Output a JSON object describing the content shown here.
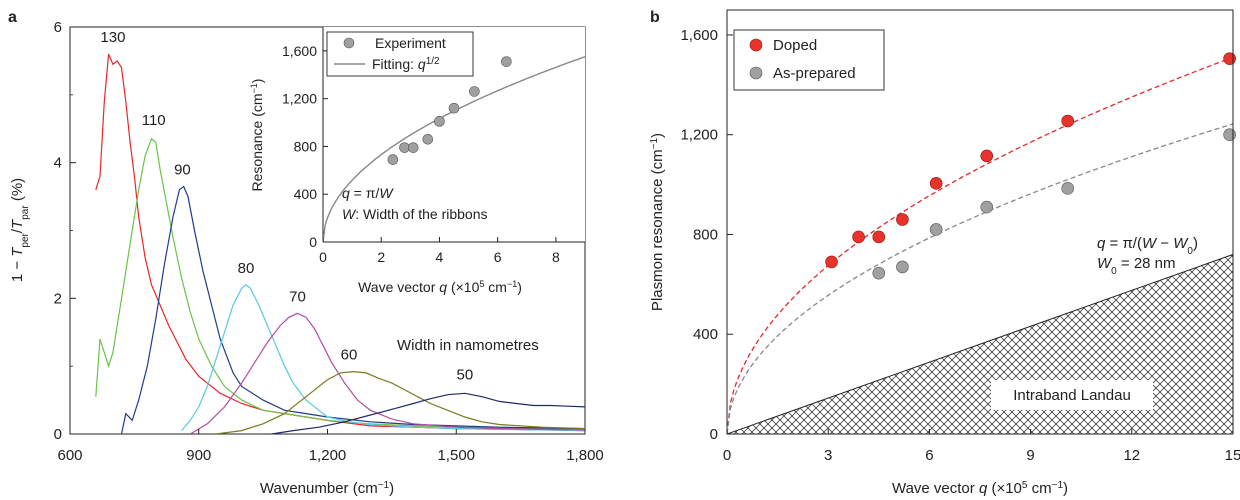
{
  "panel_a": {
    "letter": "a",
    "ylabel": "1 − T_per/T_par (%)",
    "xlabel": "Wavenumber (cm−1)",
    "width_note": "Width in namometres",
    "inset": {
      "legend_experiment": "Experiment",
      "legend_fit": "Fitting: q^1/2",
      "xlabel": "Wave vector q (×10⁵ cm⁻¹)",
      "ylabel": "Resonance (cm⁻¹)",
      "formula": "q = π/W",
      "width_def": "W: Width of the ribbons"
    }
  },
  "panel_b": {
    "letter": "b",
    "ylabel": "Plasmon resonance (cm⁻¹)",
    "xlabel": "Wave vector q (×10⁵ cm⁻¹)",
    "formula": "q = π/(W − W₀)",
    "w0": "W₀ = 28 nm",
    "region_label": "Intraband Landau",
    "legend_doped": "Doped",
    "legend_prepared": "As-prepared"
  },
  "colors": {
    "w130": "#e8262a",
    "w110": "#6cc24a",
    "w90": "#1f3b8f",
    "w80": "#59c8e0",
    "w70": "#b24aa6",
    "w60": "#7b7a1e",
    "w50": "#1a2a6c",
    "doped": "#e8332a",
    "prepared": "#9a9a9a",
    "fit_doped": "#e8262a",
    "fit_prepared": "#888888",
    "region_text": "#e8262a"
  },
  "chart_data": [
    {
      "type": "line",
      "panel": "a",
      "xlim": [
        600,
        1800
      ],
      "ylim": [
        0,
        6
      ],
      "xticks": [
        "600",
        "900",
        "1,200",
        "1,500",
        "1,800"
      ],
      "yticks": [
        "0",
        "2",
        "4",
        "6"
      ],
      "series": [
        {
          "name": "130",
          "peak_x": 700,
          "peak_y": 5.6,
          "x": [
            660,
            670,
            680,
            690,
            700,
            710,
            720,
            730,
            740,
            750,
            760,
            775,
            790,
            810,
            830,
            850,
            870,
            900,
            950,
            1000,
            1050,
            1100,
            1150,
            1200,
            1300,
            1400,
            1500,
            1600,
            1700,
            1800
          ],
          "y": [
            3.6,
            3.8,
            4.9,
            5.6,
            5.45,
            5.5,
            5.4,
            4.9,
            4.3,
            3.8,
            3.2,
            2.6,
            2.2,
            1.9,
            1.6,
            1.35,
            1.1,
            0.85,
            0.6,
            0.45,
            0.35,
            0.3,
            0.25,
            0.2,
            0.12,
            0.1,
            0.08,
            0.07,
            0.06,
            0.05
          ]
        },
        {
          "name": "110",
          "peak_x": 795,
          "peak_y": 4.35,
          "x": [
            660,
            670,
            680,
            690,
            700,
            715,
            730,
            745,
            760,
            775,
            790,
            800,
            810,
            825,
            840,
            860,
            880,
            900,
            930,
            960,
            1000,
            1050,
            1100,
            1150,
            1200,
            1300,
            1400,
            1500,
            1600,
            1700,
            1800
          ],
          "y": [
            0.55,
            1.4,
            1.2,
            1.0,
            1.2,
            1.8,
            2.4,
            3.0,
            3.6,
            4.1,
            4.35,
            4.3,
            3.9,
            3.4,
            2.9,
            2.3,
            1.8,
            1.4,
            1.0,
            0.7,
            0.5,
            0.35,
            0.3,
            0.25,
            0.2,
            0.15,
            0.12,
            0.1,
            0.09,
            0.08,
            0.07
          ]
        },
        {
          "name": "90",
          "peak_x": 862,
          "peak_y": 3.65,
          "x": [
            720,
            730,
            745,
            760,
            780,
            800,
            820,
            840,
            855,
            865,
            875,
            890,
            910,
            930,
            950,
            980,
            1000,
            1050,
            1100,
            1150,
            1200,
            1300,
            1400,
            1500,
            1600,
            1700,
            1800
          ],
          "y": [
            0.0,
            0.3,
            0.2,
            0.5,
            1.0,
            1.7,
            2.5,
            3.2,
            3.6,
            3.65,
            3.5,
            3.0,
            2.4,
            1.9,
            1.4,
            0.9,
            0.7,
            0.5,
            0.35,
            0.3,
            0.25,
            0.18,
            0.14,
            0.12,
            0.1,
            0.09,
            0.08
          ]
        },
        {
          "name": "80",
          "peak_x": 1010,
          "peak_y": 2.2,
          "x": [
            860,
            880,
            900,
            920,
            940,
            960,
            980,
            1000,
            1010,
            1020,
            1040,
            1060,
            1080,
            1100,
            1120,
            1150,
            1180,
            1200,
            1250,
            1300,
            1400,
            1500,
            1600,
            1700,
            1800
          ],
          "y": [
            0.05,
            0.2,
            0.4,
            0.7,
            1.1,
            1.5,
            1.9,
            2.15,
            2.2,
            2.15,
            1.9,
            1.6,
            1.3,
            1.0,
            0.75,
            0.5,
            0.35,
            0.25,
            0.18,
            0.14,
            0.1,
            0.08,
            0.07,
            0.06,
            0.05
          ]
        },
        {
          "name": "70",
          "peak_x": 1130,
          "peak_y": 1.78,
          "x": [
            880,
            920,
            960,
            1000,
            1030,
            1060,
            1090,
            1110,
            1130,
            1150,
            1170,
            1190,
            1210,
            1240,
            1270,
            1300,
            1350,
            1400,
            1500,
            1600,
            1700,
            1800
          ],
          "y": [
            0.0,
            0.15,
            0.4,
            0.75,
            1.05,
            1.35,
            1.6,
            1.72,
            1.78,
            1.72,
            1.55,
            1.3,
            1.05,
            0.75,
            0.5,
            0.35,
            0.22,
            0.15,
            0.1,
            0.08,
            0.07,
            0.06
          ]
        },
        {
          "name": "60",
          "peak_x": 1250,
          "peak_y": 0.92,
          "x": [
            940,
            1000,
            1050,
            1100,
            1150,
            1200,
            1230,
            1260,
            1290,
            1320,
            1350,
            1380,
            1410,
            1440,
            1480,
            1520,
            1560,
            1600,
            1700,
            1800
          ],
          "y": [
            0.0,
            0.05,
            0.15,
            0.3,
            0.55,
            0.8,
            0.9,
            0.92,
            0.9,
            0.82,
            0.75,
            0.65,
            0.55,
            0.45,
            0.35,
            0.25,
            0.18,
            0.14,
            0.1,
            0.08
          ]
        },
        {
          "name": "50",
          "peak_x": 1520,
          "peak_y": 0.6,
          "x": [
            1070,
            1120,
            1180,
            1240,
            1300,
            1360,
            1400,
            1440,
            1480,
            1520,
            1560,
            1600,
            1640,
            1680,
            1720,
            1760,
            1800
          ],
          "y": [
            0.0,
            0.05,
            0.1,
            0.18,
            0.28,
            0.38,
            0.45,
            0.52,
            0.58,
            0.6,
            0.55,
            0.48,
            0.45,
            0.42,
            0.42,
            0.41,
            0.4
          ]
        }
      ]
    },
    {
      "type": "scatter",
      "panel": "a-inset",
      "xlim": [
        0,
        9
      ],
      "ylim": [
        0,
        1800
      ],
      "xticks": [
        "0",
        "2",
        "4",
        "6",
        "8"
      ],
      "yticks": [
        "0",
        "400",
        "800",
        "1,200",
        "1,600"
      ],
      "experiment": {
        "x": [
          2.4,
          2.8,
          3.1,
          3.6,
          4.0,
          4.5,
          5.2,
          6.3
        ],
        "y": [
          690,
          790,
          790,
          860,
          1010,
          1120,
          1260,
          1510
        ]
      },
      "fit": {
        "form": "a*q^0.5",
        "a": 517
      }
    },
    {
      "type": "scatter",
      "panel": "b",
      "xlim": [
        0,
        15
      ],
      "ylim": [
        0,
        1700
      ],
      "xticks": [
        "0",
        "3",
        "6",
        "9",
        "12",
        "15"
      ],
      "yticks": [
        "0",
        "400",
        "800",
        "1,200",
        "1,600"
      ],
      "series": [
        {
          "name": "Doped",
          "x": [
            3.1,
            3.9,
            4.5,
            5.2,
            6.2,
            7.7,
            10.1,
            14.9
          ],
          "y": [
            690,
            790,
            790,
            860,
            1005,
            1115,
            1255,
            1505
          ],
          "fit": {
            "form": "a*q^0.5",
            "a": 390
          }
        },
        {
          "name": "As-prepared",
          "x": [
            4.5,
            5.2,
            6.2,
            7.7,
            10.1,
            14.9
          ],
          "y": [
            645,
            670,
            820,
            910,
            985,
            1200
          ],
          "fit": {
            "form": "a*q^0.5",
            "a": 321
          }
        }
      ],
      "region": {
        "name": "Intraband Landau",
        "upper_line_y_at_xmax": 720
      }
    }
  ]
}
